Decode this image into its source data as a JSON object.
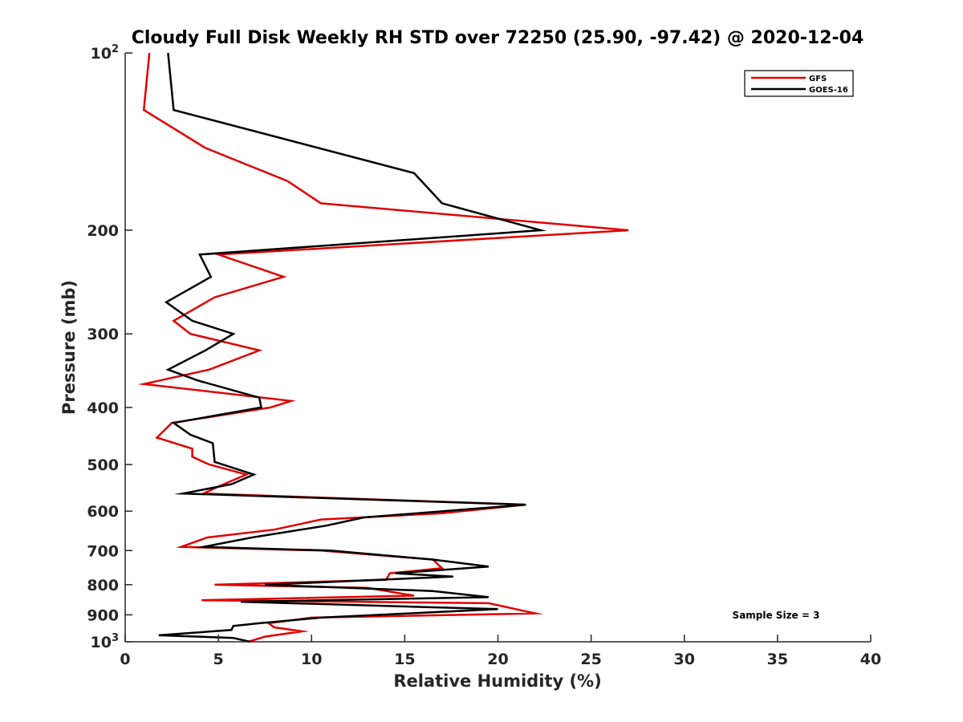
{
  "chart_data": {
    "type": "line",
    "title": "Cloudy Full Disk Weekly RH STD over 72250 (25.90, -97.42) @ 2020-12-04",
    "xlabel": "Relative Humidity (%)",
    "ylabel": "Pressure (mb)",
    "xlim": [
      0,
      40
    ],
    "ylim": [
      100,
      1000
    ],
    "y_scale": "log",
    "y_reversed": true,
    "grid": false,
    "legend_position": "top-right",
    "x_ticks": [
      "0",
      "5",
      "10",
      "15",
      "20",
      "25",
      "30",
      "35",
      "40"
    ],
    "y_ticks": [
      {
        "base": "10",
        "exp": "2"
      },
      {
        "label": "200"
      },
      {
        "label": "300"
      },
      {
        "label": "400"
      },
      {
        "label": "500"
      },
      {
        "label": "600"
      },
      {
        "label": "700"
      },
      {
        "label": "800"
      },
      {
        "label": "900"
      },
      {
        "base": "10",
        "exp": "3"
      }
    ],
    "annotation": "Sample Size = 3",
    "series": [
      {
        "name": "GFS",
        "color": "#e00000",
        "points": [
          [
            1.3,
            100
          ],
          [
            1.0,
            125
          ],
          [
            4.3,
            145
          ],
          [
            8.7,
            165
          ],
          [
            10.5,
            180
          ],
          [
            27.0,
            200
          ],
          [
            5.0,
            220
          ],
          [
            8.5,
            240
          ],
          [
            4.8,
            260
          ],
          [
            2.6,
            285
          ],
          [
            3.5,
            300
          ],
          [
            7.2,
            320
          ],
          [
            4.5,
            345
          ],
          [
            1.0,
            365
          ],
          [
            8.9,
            390
          ],
          [
            7.8,
            400
          ],
          [
            2.5,
            425
          ],
          [
            1.7,
            450
          ],
          [
            3.6,
            470
          ],
          [
            3.6,
            485
          ],
          [
            4.5,
            500
          ],
          [
            6.5,
            520
          ],
          [
            5.0,
            545
          ],
          [
            4.2,
            560
          ],
          [
            21.5,
            585
          ],
          [
            17.0,
            605
          ],
          [
            10.5,
            620
          ],
          [
            8.0,
            645
          ],
          [
            4.4,
            665
          ],
          [
            3.0,
            690
          ],
          [
            10.5,
            700
          ],
          [
            16.5,
            725
          ],
          [
            17.0,
            750
          ],
          [
            14.2,
            765
          ],
          [
            14.0,
            785
          ],
          [
            4.8,
            800
          ],
          [
            13.0,
            810
          ],
          [
            15.5,
            835
          ],
          [
            4.1,
            850
          ],
          [
            19.5,
            860
          ],
          [
            22.0,
            895
          ],
          [
            10.0,
            910
          ],
          [
            7.7,
            930
          ],
          [
            8.0,
            945
          ],
          [
            9.5,
            960
          ],
          [
            7.5,
            980
          ],
          [
            6.6,
            1000
          ]
        ]
      },
      {
        "name": "GOES-16",
        "color": "#000000",
        "points": [
          [
            2.3,
            100
          ],
          [
            2.6,
            125
          ],
          [
            15.5,
            160
          ],
          [
            17.0,
            180
          ],
          [
            22.3,
            200
          ],
          [
            4.0,
            220
          ],
          [
            4.6,
            240
          ],
          [
            2.2,
            265
          ],
          [
            3.6,
            285
          ],
          [
            5.8,
            300
          ],
          [
            4.3,
            320
          ],
          [
            2.3,
            345
          ],
          [
            3.9,
            360
          ],
          [
            7.2,
            385
          ],
          [
            7.3,
            400
          ],
          [
            2.6,
            425
          ],
          [
            3.5,
            445
          ],
          [
            4.7,
            460
          ],
          [
            4.8,
            495
          ],
          [
            6.9,
            520
          ],
          [
            5.7,
            540
          ],
          [
            3.1,
            560
          ],
          [
            21.5,
            585
          ],
          [
            12.8,
            615
          ],
          [
            10.8,
            635
          ],
          [
            6.8,
            665
          ],
          [
            4.2,
            690
          ],
          [
            11.0,
            700
          ],
          [
            16.5,
            725
          ],
          [
            19.5,
            745
          ],
          [
            14.5,
            765
          ],
          [
            17.6,
            775
          ],
          [
            7.5,
            800
          ],
          [
            16.5,
            820
          ],
          [
            19.5,
            840
          ],
          [
            6.2,
            855
          ],
          [
            20.0,
            880
          ],
          [
            10.5,
            910
          ],
          [
            7.2,
            930
          ],
          [
            5.8,
            940
          ],
          [
            5.7,
            955
          ],
          [
            1.8,
            975
          ],
          [
            5.8,
            985
          ],
          [
            6.7,
            1000
          ]
        ]
      }
    ]
  }
}
